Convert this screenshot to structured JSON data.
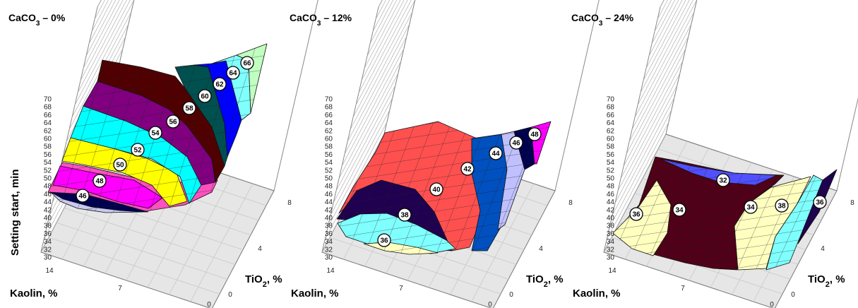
{
  "chart_data": [
    {
      "type": "surface",
      "title": "CaCO",
      "title_sub": "3",
      "title_rest": " – 0%",
      "ylabel": "Setting start, min",
      "x1_label": "Kaolin, %",
      "x2_label": "TiO",
      "x2_sub": "2",
      "x2_rest": ", %",
      "z_ticks": [
        "30",
        "32",
        "34",
        "36",
        "38",
        "40",
        "42",
        "44",
        "46",
        "48",
        "50",
        "52",
        "54",
        "56",
        "58",
        "60",
        "62",
        "64",
        "66",
        "68",
        "70"
      ],
      "kaolin_ticks": [
        "14",
        "7",
        "0"
      ],
      "tio2_ticks": [
        "8",
        "4",
        "0"
      ],
      "zlim": [
        30,
        70
      ],
      "kaolin_range": [
        0,
        14
      ],
      "tio2_range": [
        0,
        8
      ],
      "contour_labels": [
        "46",
        "48",
        "50",
        "52",
        "54",
        "56",
        "58",
        "60",
        "62",
        "64",
        "66"
      ],
      "colors": [
        "#c8c8f0",
        "#000050",
        "#ff00ff",
        "#ff50c0",
        "#ffff00",
        "#ffffc0",
        "#00ffff",
        "#480048",
        "#800080",
        "#500000",
        "#005050",
        "#0000ff",
        "#80ffff",
        "#c0ffc0"
      ]
    },
    {
      "type": "surface",
      "title": "CaCO",
      "title_sub": "3",
      "title_rest": " – 12%",
      "x1_label": "Kaolin, %",
      "x2_label": "TiO",
      "x2_sub": "2",
      "x2_rest": ", %",
      "z_ticks": [
        "30",
        "32",
        "34",
        "36",
        "38",
        "40",
        "42",
        "44",
        "46",
        "48",
        "50",
        "52",
        "54",
        "56",
        "58",
        "60",
        "62",
        "64",
        "66",
        "68",
        "70"
      ],
      "kaolin_ticks": [
        "14",
        "7",
        "0"
      ],
      "tio2_ticks": [
        "8",
        "4",
        "0"
      ],
      "zlim": [
        30,
        70
      ],
      "kaolin_range": [
        0,
        14
      ],
      "tio2_range": [
        0,
        8
      ],
      "contour_labels": [
        "36",
        "38",
        "40",
        "42",
        "44",
        "46",
        "48"
      ],
      "colors": [
        "#ffffc0",
        "#80ffff",
        "#200050",
        "#ff5050",
        "#0050c0",
        "#c0c0ff",
        "#000050",
        "#ff00ff"
      ]
    },
    {
      "type": "surface",
      "title": "CaCO",
      "title_sub": "3",
      "title_rest": " – 24%",
      "x1_label": "Kaolin, %",
      "x2_label": "TiO",
      "x2_sub": "2",
      "x2_rest": ", %",
      "z_ticks": [
        "30",
        "32",
        "34",
        "36",
        "38",
        "40",
        "42",
        "44",
        "46",
        "48",
        "50",
        "52",
        "54",
        "56",
        "58",
        "60",
        "62",
        "64",
        "66",
        "68",
        "70"
      ],
      "kaolin_ticks": [
        "14",
        "7",
        "0"
      ],
      "tio2_ticks": [
        "8",
        "4",
        "0"
      ],
      "zlim": [
        30,
        70
      ],
      "kaolin_range": [
        0,
        14
      ],
      "tio2_range": [
        0,
        8
      ],
      "contour_labels": [
        "32",
        "34",
        "34",
        "36",
        "38",
        "36"
      ],
      "colors": [
        "#5050ff",
        "#500018",
        "#ffffc0",
        "#80ffff",
        "#200050"
      ]
    }
  ]
}
